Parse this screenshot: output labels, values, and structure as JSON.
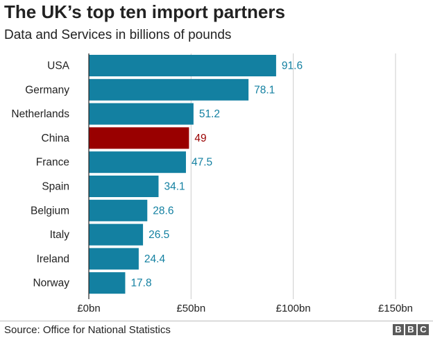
{
  "title": "The UK’s top ten import partners",
  "subtitle": "Data and Services in billions of pounds",
  "source": "Source: Office for National Statistics",
  "logo": [
    "B",
    "B",
    "C"
  ],
  "colors": {
    "bar": "#1380a1",
    "highlight": "#990000",
    "grid": "#cccccc",
    "axis": "#222222"
  },
  "chart_data": {
    "type": "bar",
    "orientation": "horizontal",
    "categories": [
      "USA",
      "Germany",
      "Netherlands",
      "China",
      "France",
      "Spain",
      "Belgium",
      "Italy",
      "Ireland",
      "Norway"
    ],
    "values": [
      91.6,
      78.1,
      51.2,
      49,
      47.5,
      34.1,
      28.6,
      26.5,
      24.4,
      17.8
    ],
    "value_labels": [
      "91.6",
      "78.1",
      "51.2",
      "49",
      "47.5",
      "34.1",
      "28.6",
      "26.5",
      "24.4",
      "17.8"
    ],
    "highlight_category": "China",
    "xlim": [
      0,
      150
    ],
    "xticks": [
      0,
      50,
      100,
      150
    ],
    "xtick_labels": [
      "£0bn",
      "£50bn",
      "£100bn",
      "£150bn"
    ],
    "grid": true
  }
}
